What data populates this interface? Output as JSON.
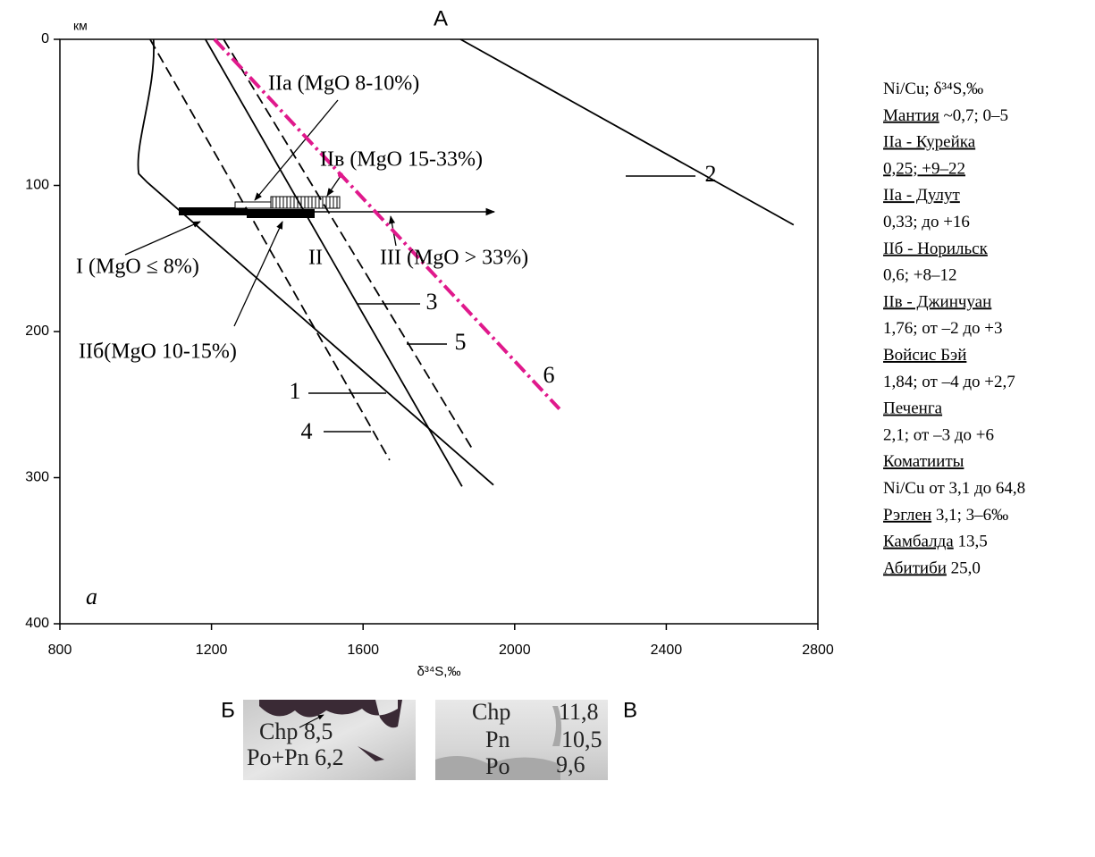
{
  "chart_data": {
    "type": "line",
    "title": "А",
    "panel_label": "а",
    "ylabel": "км",
    "xlabel": "δ³⁴S,‰",
    "xlim": [
      800,
      2800
    ],
    "xticks": [
      800,
      1200,
      1600,
      2000,
      2400,
      2800
    ],
    "ylim": [
      0,
      400
    ],
    "yticks": [
      0,
      100,
      200,
      300,
      400
    ],
    "y_inverted": true,
    "series": [
      {
        "name": "1",
        "color": "#000000",
        "dash": "solid",
        "x": [
          1047,
          1055,
          996,
          1008,
          1031,
          1944
        ],
        "y": [
          0,
          34,
          71,
          92,
          98,
          305
        ]
      },
      {
        "name": "2",
        "color": "#000000",
        "dash": "solid",
        "x": [
          1857,
          2736
        ],
        "y": [
          0,
          127
        ]
      },
      {
        "name": "3",
        "color": "#000000",
        "dash": "solid",
        "x": [
          1184,
          1861
        ],
        "y": [
          0,
          306
        ]
      },
      {
        "name": "4",
        "color": "#000000",
        "dash": "dashed",
        "x": [
          1038,
          1670
        ],
        "y": [
          0,
          288
        ]
      },
      {
        "name": "5",
        "color": "#000000",
        "dash": "dashed",
        "x": [
          1232,
          1892
        ],
        "y": [
          0,
          282
        ]
      },
      {
        "name": "6",
        "color": "#e0198c",
        "dash": "dashdot",
        "x": [
          1208,
          2118
        ],
        "y": [
          0,
          253
        ]
      }
    ],
    "annotations": [
      "IIa (MgO 8-10%)",
      "IIв (MgO 15-33%)",
      "II",
      "III (MgO > 33%)",
      "I (MgO ≤ 8%)",
      "IIб(MgO 10-15%)"
    ]
  },
  "notes": [
    [
      {
        "text": "Ni/Cu; δ³⁴S,‰",
        "underline": false
      }
    ],
    [
      {
        "text": "Мантия",
        "underline": true
      },
      {
        "text": " ~0,7; 0–5",
        "underline": false
      }
    ],
    [
      {
        "text": "IIa - Курейка",
        "underline": true
      }
    ],
    [
      {
        "text": "0,25; +9–22",
        "underline": true
      }
    ],
    [
      {
        "text": "IIa - Дулут",
        "underline": true
      }
    ],
    [
      {
        "text": "0,33; до +16",
        "underline": false
      }
    ],
    [
      {
        "text": "IIб - Норильск",
        "underline": true
      }
    ],
    [
      {
        "text": "0,6; +8–12",
        "underline": false
      }
    ],
    [
      {
        "text": "IIв - Джинчуан",
        "underline": true
      }
    ],
    [
      {
        "text": "1,76; от –2 до +3",
        "underline": false
      }
    ],
    [
      {
        "text": "Войсис Бэй",
        "underline": true
      }
    ],
    [
      {
        "text": "1,84; от –4 до +2,7",
        "underline": false
      }
    ],
    [
      {
        "text": "Печенга",
        "underline": true
      }
    ],
    [
      {
        "text": "2,1; от –3 до +6",
        "underline": false
      }
    ],
    [
      {
        "text": "Коматииты",
        "underline": true
      }
    ],
    [
      {
        "text": "Ni/Cu от 3,1 до 64,8",
        "underline": false
      }
    ],
    [
      {
        "text": "Рэглен",
        "underline": true
      },
      {
        "text": " 3,1; 3–6‰",
        "underline": false
      }
    ],
    [
      {
        "text": "Камбалда",
        "underline": true
      },
      {
        "text": " 13,5",
        "underline": false
      }
    ],
    [
      {
        "text": "Абитиби",
        "underline": true
      },
      {
        "text": " 25,0",
        "underline": false
      }
    ]
  ],
  "photos": [
    {
      "label": "Б",
      "texts": [
        "Chp 8,5",
        "Po+Pn 6,2"
      ]
    },
    {
      "label": "В",
      "texts": [
        "Chp",
        "11,8",
        "Pn",
        "10,5",
        "Po",
        "9,6"
      ]
    }
  ]
}
